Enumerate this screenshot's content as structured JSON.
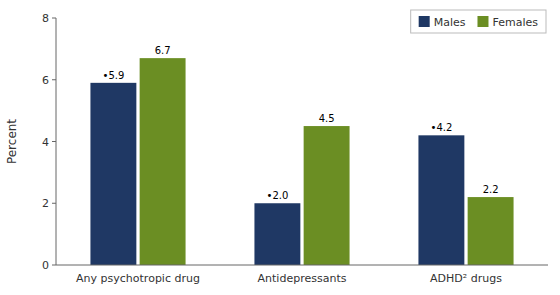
{
  "chart_data": {
    "type": "bar",
    "categories": [
      "Any psychotropic drug",
      "Antidepressants",
      "ADHD² drugs"
    ],
    "series": [
      {
        "name": "Males",
        "color": "#1F3864",
        "values": [
          5.9,
          2.0,
          4.2
        ],
        "value_labels": [
          "•5.9",
          "•2.0",
          "•4.2"
        ]
      },
      {
        "name": "Females",
        "color": "#6B8E23",
        "values": [
          6.7,
          4.5,
          2.2
        ]
      }
    ],
    "y_label": "Percent",
    "ylim": [
      0,
      8
    ],
    "yticks": [
      0,
      2,
      4,
      6,
      8
    ],
    "data_labels": true,
    "legend": "top-right",
    "grid": false
  }
}
